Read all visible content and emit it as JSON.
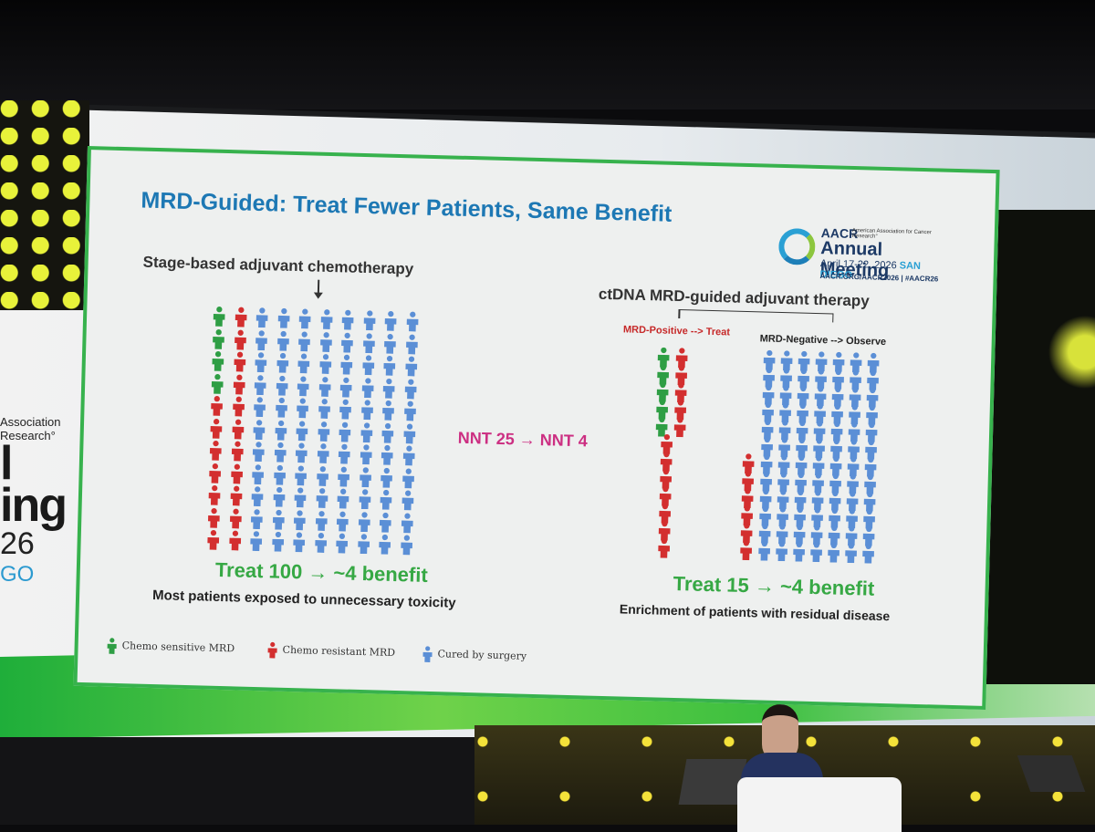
{
  "colors": {
    "sensitive": "#2e9e44",
    "resistant": "#d32f2f",
    "cured": "#5b8fd6",
    "title": "#1d78b4",
    "accent_green": "#36a844",
    "nnt": "#cc2f82"
  },
  "venue": {
    "left_logo": {
      "line1": "Association",
      "line2": "Research°",
      "big1": "l",
      "big2": "ing",
      "year": "26",
      "city": "GO"
    }
  },
  "slide": {
    "title": "MRD-Guided: Treat Fewer Patients, Same Benefit",
    "logo": {
      "org": "AACR",
      "org_small": "American Association for Cancer Research°",
      "meeting": "Annual Meeting",
      "dates": "April 17-22, 2026",
      "city": "SAN DIEGO",
      "url": "AACR.ORG/AACR2026  |  #AACR26"
    },
    "left": {
      "heading": "Stage-based adjuvant chemotherapy",
      "result": "Treat 100 → ~4 benefit",
      "subtitle": "Most patients exposed to unnecessary toxicity",
      "grid": {
        "cols": 10,
        "rows": 11,
        "sensitive_per_col0": 4,
        "resistant_cols": 2
      }
    },
    "center": {
      "nnt": "NNT 25 → NNT 4"
    },
    "right": {
      "heading": "ctDNA MRD-guided adjuvant therapy",
      "pos_label": "MRD-Positive --> Treat",
      "neg_label": "MRD-Negative --> Observe",
      "result": "Treat 15 → ~4 benefit",
      "subtitle": "Enrichment of patients with residual disease"
    },
    "legend": [
      {
        "label": "Chemo sensitive MRD",
        "color_key": "sensitive"
      },
      {
        "label": "Chemo resistant MRD",
        "color_key": "resistant"
      },
      {
        "label": "Cured by surgery",
        "color_key": "cured"
      }
    ]
  }
}
